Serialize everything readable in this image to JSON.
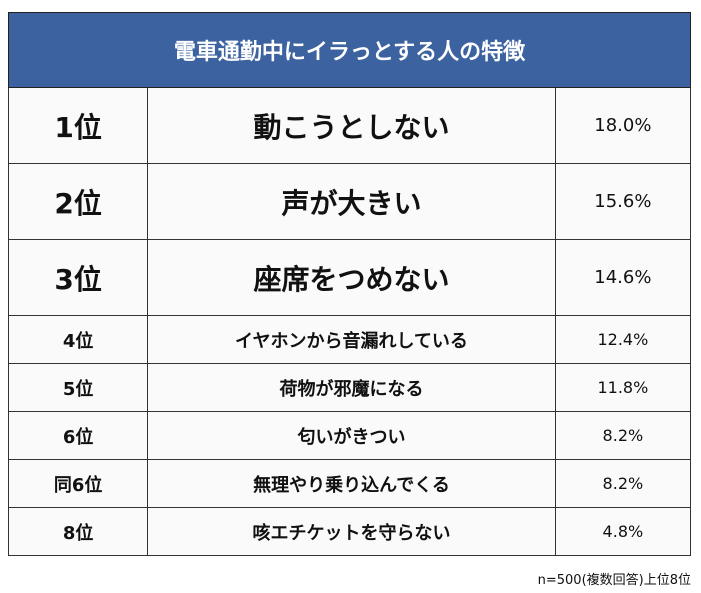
{
  "title": "電車通勤中にイラっとする人の特徴",
  "colors": {
    "header_bg": "#3c62a0",
    "header_text": "#ffffff",
    "cell_bg": "#fafafa",
    "border": "#333333"
  },
  "rows": [
    {
      "rank": "1位",
      "item": "動こうとしない",
      "percent": "18.0%"
    },
    {
      "rank": "2位",
      "item": "声が大きい",
      "percent": "15.6%"
    },
    {
      "rank": "3位",
      "item": "座席をつめない",
      "percent": "14.6%"
    },
    {
      "rank": "4位",
      "item": "イヤホンから音漏れしている",
      "percent": "12.4%"
    },
    {
      "rank": "5位",
      "item": "荷物が邪魔になる",
      "percent": "11.8%"
    },
    {
      "rank": "6位",
      "item": "匂いがきつい",
      "percent": "8.2%"
    },
    {
      "rank": "同6位",
      "item": "無理やり乗り込んでくる",
      "percent": "8.2%"
    },
    {
      "rank": "8位",
      "item": "咳エチケットを守らない",
      "percent": "4.8%"
    }
  ],
  "footnote": "n=500(複数回答)上位8位"
}
